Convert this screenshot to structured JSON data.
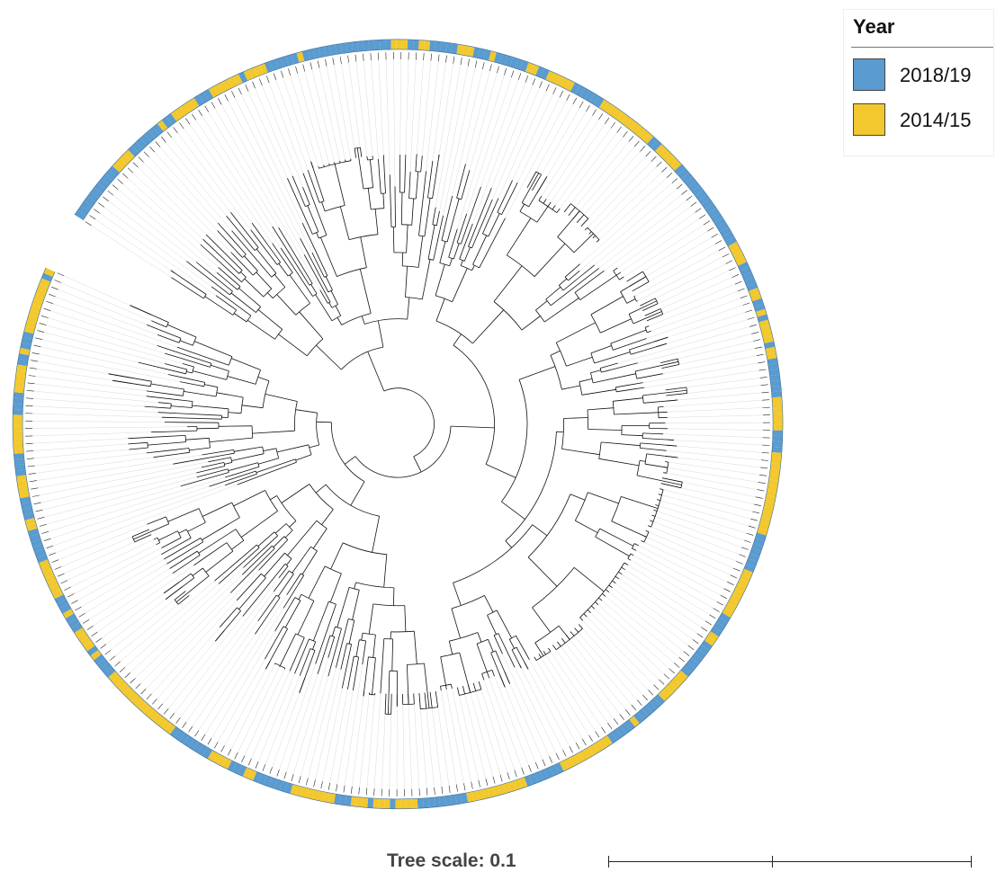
{
  "legend": {
    "title": "Year",
    "items": [
      {
        "label": "2018/19",
        "color": "#5a9bd0"
      },
      {
        "label": "2014/15",
        "color": "#f2c82e"
      }
    ]
  },
  "scale": {
    "label": "Tree scale: 0.1",
    "value": 0.1
  },
  "colors": {
    "branch": "#111111",
    "guide": "#d9d9d9",
    "leaf_tick": "#222222"
  }
}
